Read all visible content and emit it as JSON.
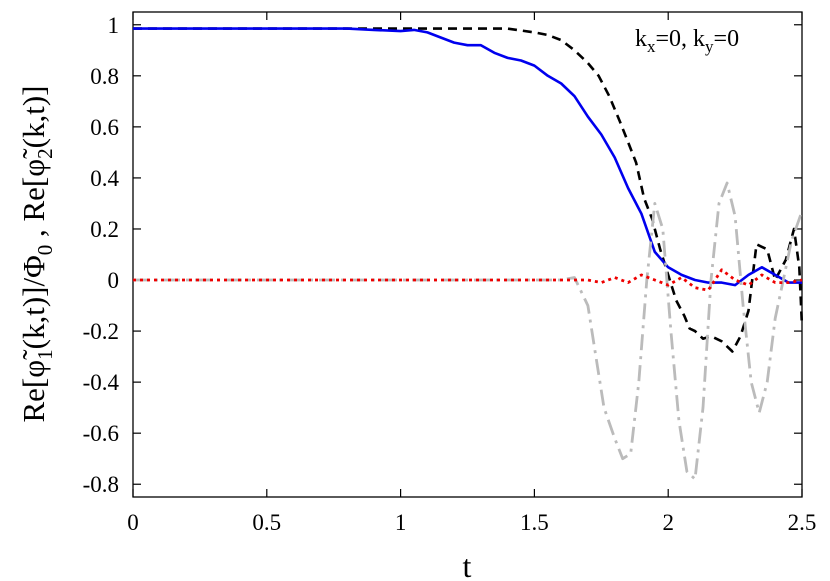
{
  "chart_data": {
    "type": "line",
    "xlabel": "t",
    "ylabel": {
      "prefix": "Re[",
      "phi1_sub": "1",
      "mid": "(k,t)]/Φ",
      "phi0_sub": "0",
      "sep": " , Re[",
      "phi2_sub": "2",
      "suffix": "(k,t)]"
    },
    "annotation": {
      "k": "k",
      "x_sub": "x",
      "y_sub": "y",
      "eq_x": "=0, ",
      "eq_y": "=0"
    },
    "xlim": [
      0,
      2.5
    ],
    "ylim": [
      -0.85,
      1.05
    ],
    "x_ticks": [
      0,
      0.5,
      1,
      1.5,
      2,
      2.5
    ],
    "x_tick_labels": [
      "0",
      "0.5",
      "1",
      "1.5",
      "2",
      "2.5"
    ],
    "y_ticks": [
      -0.8,
      -0.6,
      -0.4,
      -0.2,
      0,
      0.2,
      0.4,
      0.6,
      0.8,
      1
    ],
    "y_tick_labels": [
      "-0.8",
      "-0.6",
      "-0.4",
      "-0.2",
      "0",
      "0.2",
      "0.4",
      "0.6",
      "0.8",
      "1"
    ],
    "grid": false,
    "legend": "none",
    "series": [
      {
        "color": "#000000",
        "style": "dashed",
        "x": [
          0,
          0.2,
          0.4,
          0.6,
          0.8,
          1.0,
          1.1,
          1.2,
          1.3,
          1.4,
          1.5,
          1.55,
          1.6,
          1.65,
          1.7,
          1.74,
          1.78,
          1.82,
          1.85,
          1.88,
          1.91,
          1.94,
          1.97,
          2.0,
          2.03,
          2.06,
          2.08,
          2.1,
          2.13,
          2.16,
          2.2,
          2.24,
          2.27,
          2.3,
          2.33,
          2.37,
          2.4,
          2.44,
          2.47,
          2.49,
          2.5
        ],
        "y": [
          0.985,
          0.985,
          0.985,
          0.985,
          0.985,
          0.985,
          0.985,
          0.985,
          0.985,
          0.985,
          0.97,
          0.96,
          0.94,
          0.9,
          0.85,
          0.8,
          0.72,
          0.62,
          0.54,
          0.46,
          0.32,
          0.24,
          0.12,
          0.02,
          -0.08,
          -0.14,
          -0.19,
          -0.2,
          -0.23,
          -0.22,
          -0.24,
          -0.28,
          -0.22,
          -0.12,
          0.14,
          0.12,
          0.0,
          0.08,
          0.2,
          0.05,
          -0.18
        ]
      },
      {
        "color": "#0000ee",
        "style": "solid",
        "x": [
          0,
          0.2,
          0.4,
          0.6,
          0.8,
          0.9,
          1.0,
          1.05,
          1.1,
          1.15,
          1.2,
          1.25,
          1.3,
          1.35,
          1.4,
          1.45,
          1.5,
          1.55,
          1.6,
          1.65,
          1.7,
          1.75,
          1.8,
          1.85,
          1.9,
          1.95,
          2.0,
          2.05,
          2.1,
          2.15,
          2.2,
          2.25,
          2.3,
          2.35,
          2.4,
          2.45,
          2.5
        ],
        "y": [
          0.985,
          0.985,
          0.985,
          0.985,
          0.985,
          0.98,
          0.975,
          0.98,
          0.97,
          0.95,
          0.93,
          0.92,
          0.92,
          0.89,
          0.87,
          0.86,
          0.84,
          0.8,
          0.77,
          0.72,
          0.64,
          0.57,
          0.48,
          0.36,
          0.26,
          0.11,
          0.05,
          0.02,
          0.0,
          -0.01,
          -0.01,
          -0.02,
          0.02,
          0.05,
          0.02,
          -0.01,
          -0.01
        ]
      },
      {
        "color": "#bbbbbb",
        "style": "dashdot",
        "x": [
          0,
          0.5,
          1.0,
          1.3,
          1.5,
          1.6,
          1.65,
          1.7,
          1.73,
          1.76,
          1.8,
          1.83,
          1.86,
          1.89,
          1.92,
          1.95,
          1.98,
          2.01,
          2.04,
          2.07,
          2.1,
          2.13,
          2.16,
          2.19,
          2.22,
          2.25,
          2.28,
          2.31,
          2.34,
          2.37,
          2.4,
          2.43,
          2.46,
          2.5
        ],
        "y": [
          0.0,
          0.0,
          0.0,
          0.0,
          0.0,
          0.0,
          0.01,
          -0.1,
          -0.3,
          -0.5,
          -0.62,
          -0.7,
          -0.68,
          -0.4,
          0.0,
          0.3,
          0.2,
          -0.2,
          -0.55,
          -0.75,
          -0.78,
          -0.5,
          0.0,
          0.3,
          0.38,
          0.25,
          -0.1,
          -0.4,
          -0.52,
          -0.4,
          -0.15,
          0.0,
          0.15,
          0.27
        ]
      },
      {
        "color": "#ee0000",
        "style": "dotted",
        "x": [
          0,
          0.5,
          1.0,
          1.5,
          1.7,
          1.75,
          1.8,
          1.85,
          1.9,
          1.95,
          2.0,
          2.05,
          2.1,
          2.15,
          2.2,
          2.25,
          2.3,
          2.35,
          2.4,
          2.45,
          2.5
        ],
        "y": [
          0.0,
          0.0,
          0.0,
          0.0,
          0.0,
          -0.01,
          0.01,
          -0.01,
          0.02,
          0.0,
          -0.02,
          0.01,
          -0.03,
          -0.04,
          0.04,
          0.0,
          -0.02,
          0.02,
          -0.01,
          -0.01,
          0.0
        ]
      }
    ]
  }
}
